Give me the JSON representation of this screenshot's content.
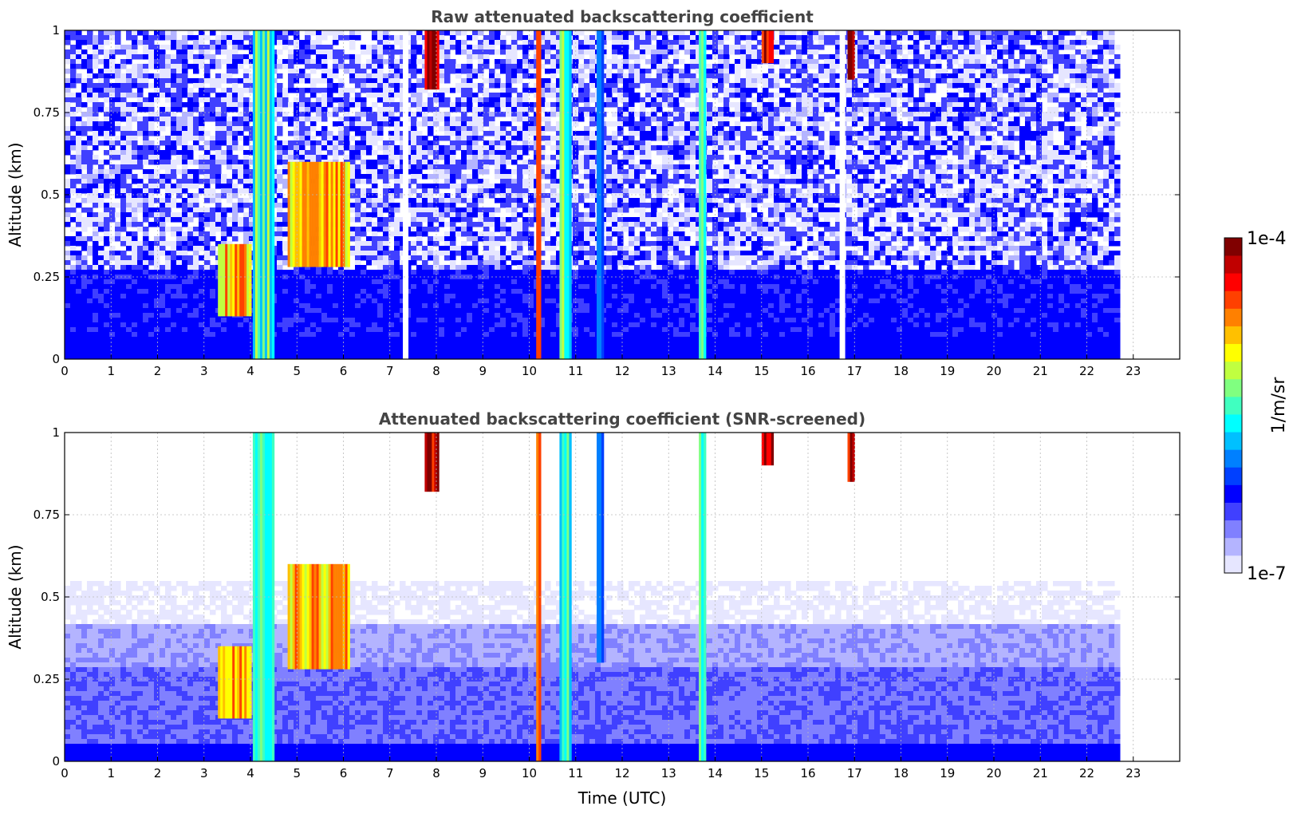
{
  "chart_data": [
    {
      "type": "heatmap",
      "title": "Raw attenuated backscattering coefficient",
      "xlabel": "",
      "ylabel": "Altitude (km)",
      "xlim": [
        0,
        24
      ],
      "ylim": [
        0,
        1
      ],
      "x_ticks": [
        "0",
        "1",
        "2",
        "3",
        "4",
        "5",
        "6",
        "7",
        "8",
        "9",
        "10",
        "11",
        "12",
        "13",
        "14",
        "15",
        "16",
        "17",
        "18",
        "19",
        "20",
        "21",
        "22",
        "23"
      ],
      "y_ticks": [
        "0",
        "0.25",
        "0.5",
        "0.75",
        "1"
      ],
      "grid": true,
      "data_extent_hours": [
        0,
        22.65
      ],
      "features": [
        {
          "kind": "aerosol_layer",
          "x": [
            3.3,
            4.0
          ],
          "y": [
            0.13,
            0.35
          ],
          "level": "high"
        },
        {
          "kind": "aerosol_layer",
          "x": [
            4.8,
            6.1
          ],
          "y": [
            0.28,
            0.6
          ],
          "level": "high"
        },
        {
          "kind": "cloud",
          "x": [
            4.05,
            4.5
          ],
          "y": [
            0,
            1
          ],
          "level": "medium"
        },
        {
          "kind": "cloud",
          "x": [
            7.75,
            8.05
          ],
          "y": [
            0.82,
            1
          ],
          "level": "very_high"
        },
        {
          "kind": "cloud",
          "x": [
            10.15,
            10.25
          ],
          "y": [
            0,
            1
          ],
          "level": "high"
        },
        {
          "kind": "cloud",
          "x": [
            10.65,
            10.9
          ],
          "y": [
            0,
            1
          ],
          "level": "medium"
        },
        {
          "kind": "cloud",
          "x": [
            11.45,
            11.6
          ],
          "y": [
            0,
            1
          ],
          "level": "low"
        },
        {
          "kind": "cloud",
          "x": [
            13.65,
            13.8
          ],
          "y": [
            0,
            1
          ],
          "level": "medium"
        },
        {
          "kind": "cloud",
          "x": [
            15.0,
            15.25
          ],
          "y": [
            0.9,
            1
          ],
          "level": "very_high"
        },
        {
          "kind": "cloud",
          "x": [
            16.85,
            17.0
          ],
          "y": [
            0.85,
            1
          ],
          "level": "very_high"
        },
        {
          "kind": "data_gap",
          "x": [
            7.28,
            7.4
          ]
        },
        {
          "kind": "data_gap",
          "x": [
            16.68,
            16.8
          ]
        }
      ]
    },
    {
      "type": "heatmap",
      "title": "Attenuated backscattering coefficient (SNR-screened)",
      "xlabel": "Time (UTC)",
      "ylabel": "Altitude (km)",
      "xlim": [
        0,
        24
      ],
      "ylim": [
        0,
        1
      ],
      "x_ticks": [
        "0",
        "1",
        "2",
        "3",
        "4",
        "5",
        "6",
        "7",
        "8",
        "9",
        "10",
        "11",
        "12",
        "13",
        "14",
        "15",
        "16",
        "17",
        "18",
        "19",
        "20",
        "21",
        "22",
        "23"
      ],
      "y_ticks": [
        "0",
        "0.25",
        "0.5",
        "0.75",
        "1"
      ],
      "grid": true,
      "data_extent_hours": [
        0,
        22.65
      ],
      "features": [
        {
          "kind": "boundary_layer",
          "x": [
            0,
            22.65
          ],
          "y": [
            0,
            0.55
          ],
          "level": "low"
        },
        {
          "kind": "aerosol_layer",
          "x": [
            3.3,
            4.0
          ],
          "y": [
            0.13,
            0.35
          ],
          "level": "high"
        },
        {
          "kind": "aerosol_layer",
          "x": [
            4.8,
            6.1
          ],
          "y": [
            0.28,
            0.6
          ],
          "level": "high"
        },
        {
          "kind": "cloud",
          "x": [
            4.05,
            4.5
          ],
          "y": [
            0,
            1
          ],
          "level": "medium"
        },
        {
          "kind": "cloud",
          "x": [
            7.75,
            8.05
          ],
          "y": [
            0.82,
            1
          ],
          "level": "very_high"
        },
        {
          "kind": "cloud",
          "x": [
            10.15,
            10.25
          ],
          "y": [
            0,
            1
          ],
          "level": "high"
        },
        {
          "kind": "cloud",
          "x": [
            10.65,
            10.9
          ],
          "y": [
            0,
            1
          ],
          "level": "medium"
        },
        {
          "kind": "cloud",
          "x": [
            11.45,
            11.6
          ],
          "y": [
            0.3,
            1
          ],
          "level": "low"
        },
        {
          "kind": "cloud",
          "x": [
            13.65,
            13.8
          ],
          "y": [
            0,
            1
          ],
          "level": "medium"
        },
        {
          "kind": "cloud",
          "x": [
            15.0,
            15.25
          ],
          "y": [
            0.9,
            1
          ],
          "level": "very_high"
        },
        {
          "kind": "cloud",
          "x": [
            16.85,
            17.0
          ],
          "y": [
            0.85,
            1
          ],
          "level": "very_high"
        }
      ]
    }
  ],
  "colorbar": {
    "max_label": "1e-4",
    "min_label": "1e-7",
    "unit_label": "1/m/sr",
    "scale": "log",
    "colors": [
      "#e6e6ff",
      "#b4b4ff",
      "#8080ff",
      "#4040ff",
      "#0000ff",
      "#0040ff",
      "#0080ff",
      "#00c0ff",
      "#00ffff",
      "#40ffc0",
      "#80ff80",
      "#c0ff40",
      "#ffff00",
      "#ffc000",
      "#ff8000",
      "#ff4000",
      "#ff0000",
      "#c00000",
      "#800000"
    ]
  }
}
